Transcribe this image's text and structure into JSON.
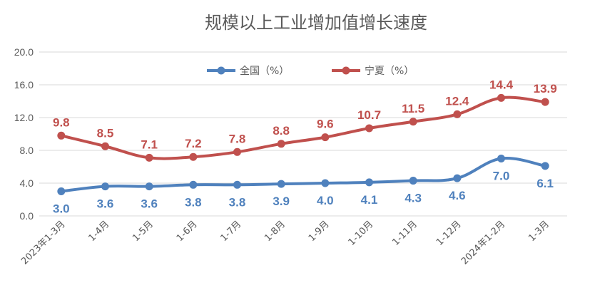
{
  "chart_data": {
    "type": "line",
    "title": "规模以上工业增加值增长速度",
    "categories": [
      "2023年1-3月",
      "1-4月",
      "1-5月",
      "1-6月",
      "1-7月",
      "1-8月",
      "1-9月",
      "1-10月",
      "1-11月",
      "1-12月",
      "2024年1-2月",
      "1-3月"
    ],
    "series": [
      {
        "name": "全国（%）",
        "color": "#4F81BD",
        "values": [
          3.0,
          3.6,
          3.6,
          3.8,
          3.8,
          3.9,
          4.0,
          4.1,
          4.3,
          4.6,
          7.0,
          6.1
        ],
        "label_position": "below"
      },
      {
        "name": "宁夏（%）",
        "color": "#C0504D",
        "values": [
          9.8,
          8.5,
          7.1,
          7.2,
          7.8,
          8.8,
          9.6,
          10.7,
          11.5,
          12.4,
          14.4,
          13.9
        ],
        "label_position": "above"
      }
    ],
    "ylim": [
      0,
      20
    ],
    "yticks": [
      0,
      4,
      8,
      12,
      16,
      20
    ],
    "ytick_labels": [
      "0.0",
      "4.0",
      "8.0",
      "12.0",
      "16.0",
      "20.0"
    ],
    "grid": true,
    "legend": "top-right"
  }
}
